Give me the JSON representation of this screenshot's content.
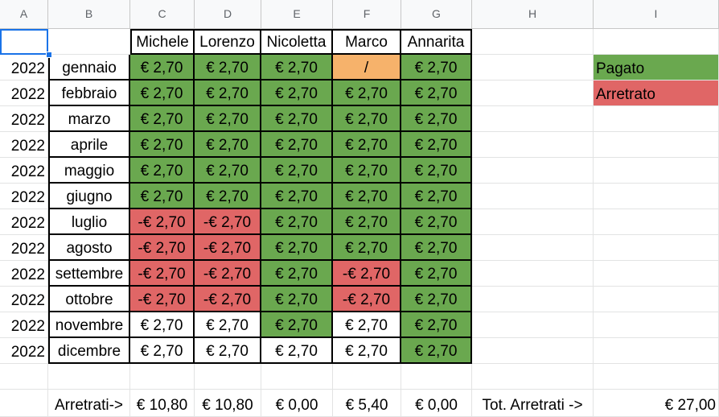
{
  "columns": [
    "A",
    "B",
    "C",
    "D",
    "E",
    "F",
    "G",
    "H",
    "I"
  ],
  "header": [
    "",
    "",
    "Michele",
    "Lorenzo",
    "Nicoletta",
    "Marco",
    "Annarita"
  ],
  "rows": [
    {
      "year": "2022",
      "month": "gennaio",
      "vals": [
        "€ 2,70",
        "€ 2,70",
        "€ 2,70",
        "/",
        "€ 2,70"
      ],
      "status": [
        "g",
        "g",
        "g",
        "o",
        "g"
      ]
    },
    {
      "year": "2022",
      "month": "febbraio",
      "vals": [
        "€ 2,70",
        "€ 2,70",
        "€ 2,70",
        "€ 2,70",
        "€ 2,70"
      ],
      "status": [
        "g",
        "g",
        "g",
        "g",
        "g"
      ]
    },
    {
      "year": "2022",
      "month": "marzo",
      "vals": [
        "€ 2,70",
        "€ 2,70",
        "€ 2,70",
        "€ 2,70",
        "€ 2,70"
      ],
      "status": [
        "g",
        "g",
        "g",
        "g",
        "g"
      ]
    },
    {
      "year": "2022",
      "month": "aprile",
      "vals": [
        "€ 2,70",
        "€ 2,70",
        "€ 2,70",
        "€ 2,70",
        "€ 2,70"
      ],
      "status": [
        "g",
        "g",
        "g",
        "g",
        "g"
      ]
    },
    {
      "year": "2022",
      "month": "maggio",
      "vals": [
        "€ 2,70",
        "€ 2,70",
        "€ 2,70",
        "€ 2,70",
        "€ 2,70"
      ],
      "status": [
        "g",
        "g",
        "g",
        "g",
        "g"
      ]
    },
    {
      "year": "2022",
      "month": "giugno",
      "vals": [
        "€ 2,70",
        "€ 2,70",
        "€ 2,70",
        "€ 2,70",
        "€ 2,70"
      ],
      "status": [
        "g",
        "g",
        "g",
        "g",
        "g"
      ]
    },
    {
      "year": "2022",
      "month": "luglio",
      "vals": [
        "-€ 2,70",
        "-€ 2,70",
        "€ 2,70",
        "€ 2,70",
        "€ 2,70"
      ],
      "status": [
        "r",
        "r",
        "g",
        "g",
        "g"
      ]
    },
    {
      "year": "2022",
      "month": "agosto",
      "vals": [
        "-€ 2,70",
        "-€ 2,70",
        "€ 2,70",
        "€ 2,70",
        "€ 2,70"
      ],
      "status": [
        "r",
        "r",
        "g",
        "g",
        "g"
      ]
    },
    {
      "year": "2022",
      "month": "settembre",
      "vals": [
        "-€ 2,70",
        "-€ 2,70",
        "€ 2,70",
        "-€ 2,70",
        "€ 2,70"
      ],
      "status": [
        "r",
        "r",
        "g",
        "r",
        "g"
      ]
    },
    {
      "year": "2022",
      "month": "ottobre",
      "vals": [
        "-€ 2,70",
        "-€ 2,70",
        "€ 2,70",
        "-€ 2,70",
        "€ 2,70"
      ],
      "status": [
        "r",
        "r",
        "g",
        "r",
        "g"
      ]
    },
    {
      "year": "2022",
      "month": "novembre",
      "vals": [
        "€ 2,70",
        "€ 2,70",
        "€ 2,70",
        "€ 2,70",
        "€ 2,70"
      ],
      "status": [
        "w",
        "w",
        "g",
        "w",
        "g"
      ]
    },
    {
      "year": "2022",
      "month": "dicembre",
      "vals": [
        "€ 2,70",
        "€ 2,70",
        "€ 2,70",
        "€ 2,70",
        "€ 2,70"
      ],
      "status": [
        "w",
        "w",
        "w",
        "w",
        "g"
      ]
    }
  ],
  "legend": {
    "paid": "Pagato",
    "overdue": "Arretrato"
  },
  "totals": {
    "label": "Arretrati->",
    "values": [
      "€ 10,80",
      "€ 10,80",
      "€ 0,00",
      "€ 5,40",
      "€ 0,00"
    ],
    "grand_label": "Tot. Arretrati ->",
    "grand_value": "€ 27,00"
  },
  "colors": {
    "paid": "#6aa84f",
    "overdue": "#e06666",
    "na": "#f6b26b"
  }
}
